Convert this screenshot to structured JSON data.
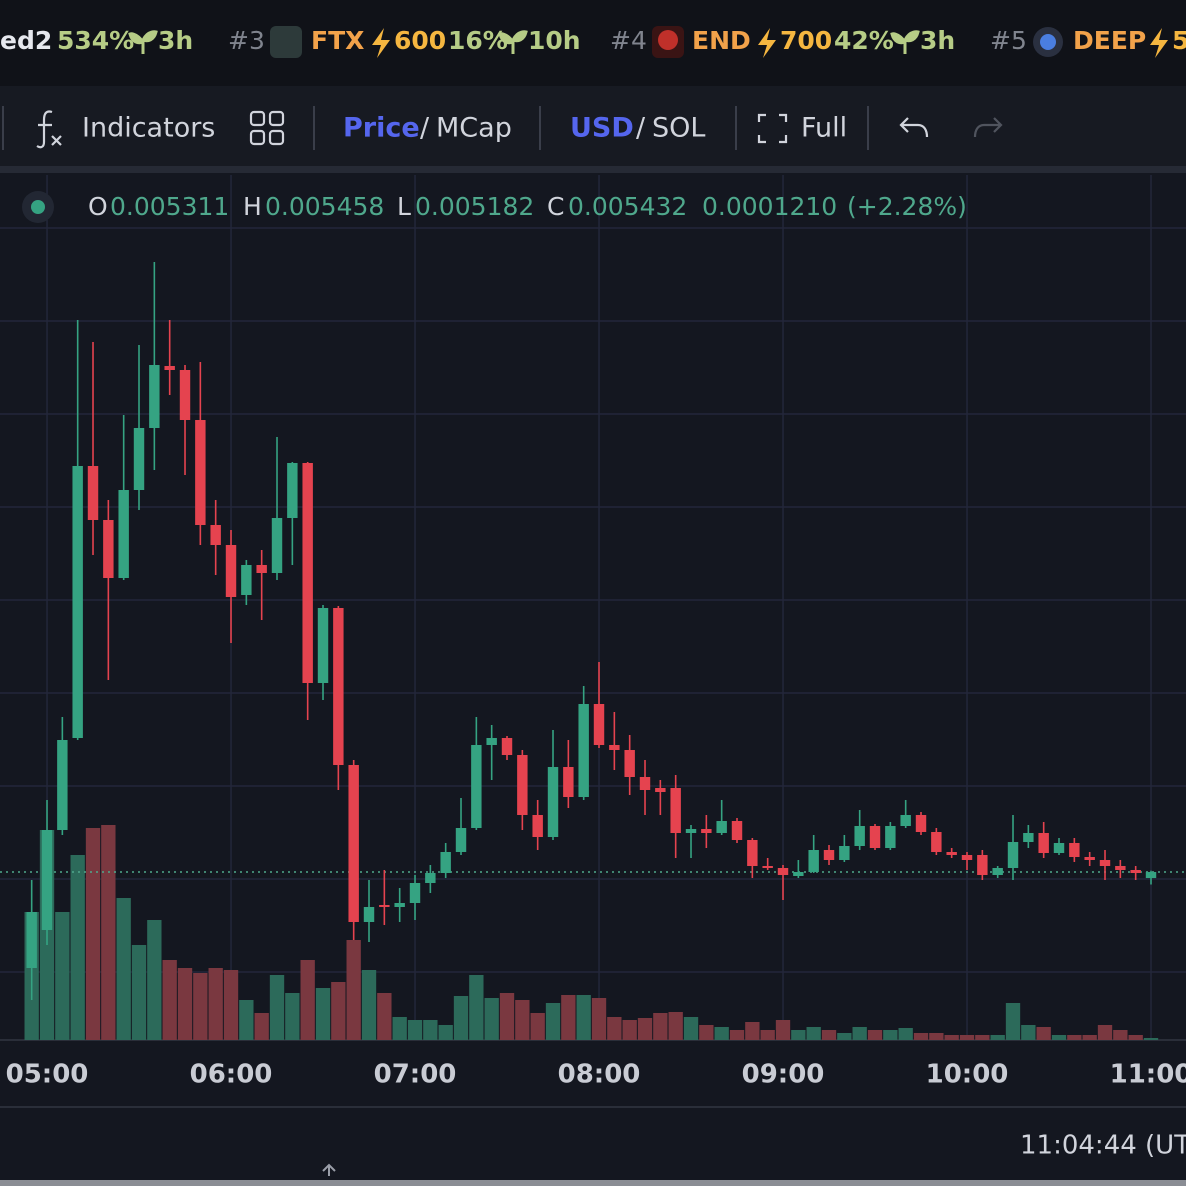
{
  "ticker": [
    {
      "name": "ed2",
      "pct": "534%",
      "age": "3h"
    },
    {
      "rank": "#3",
      "name": "FTX",
      "boost": "600",
      "pct": "16%",
      "age": "10h"
    },
    {
      "rank": "#4",
      "name": "END",
      "boost": "700",
      "pct": "42%",
      "age": "3h"
    },
    {
      "rank": "#5",
      "name": "DEEP",
      "boost": "5"
    }
  ],
  "toolbar": {
    "indicators": "Indicators",
    "price": "Price",
    "mcap": "MCap",
    "usd": "USD",
    "sol": "SOL",
    "separator": "/",
    "full": "Full"
  },
  "chart_data": {
    "type": "candlestick",
    "x": [
      295,
      300,
      305,
      310,
      315,
      320,
      325,
      330,
      335,
      340,
      345,
      350,
      355,
      360,
      365,
      370,
      375,
      380,
      385,
      390,
      395,
      400,
      405,
      410,
      415,
      420,
      425,
      430,
      435,
      440,
      445,
      450,
      455,
      460,
      465,
      470,
      475,
      480,
      485,
      490,
      495,
      500,
      505,
      510,
      515,
      520,
      525,
      530,
      535,
      540,
      545,
      550,
      555,
      560,
      565,
      570,
      575,
      580,
      585,
      590,
      595,
      600,
      605,
      610,
      615,
      620,
      625,
      630,
      635,
      640,
      645,
      650,
      655,
      660
    ],
    "open": [
      0.003512,
      0.004272,
      0.006272,
      0.008112,
      0.013552,
      0.012472,
      0.011312,
      0.013072,
      0.014312,
      0.015552,
      0.015472,
      0.014472,
      0.012372,
      0.011972,
      0.010972,
      0.011572,
      0.011412,
      0.012512,
      0.013612,
      0.009212,
      0.010712,
      0.007572,
      0.004432,
      0.004772,
      0.004732,
      0.004812,
      0.005212,
      0.005412,
      0.005832,
      0.006312,
      0.007972,
      0.008112,
      0.007772,
      0.006572,
      0.006132,
      0.007532,
      0.006932,
      0.008792,
      0.007972,
      0.007872,
      0.007332,
      0.007112,
      0.007112,
      0.006212,
      0.006292,
      0.006212,
      0.006452,
      0.006072,
      0.005552,
      0.005512,
      0.005352,
      0.005432,
      0.005872,
      0.005672,
      0.005952,
      0.006352,
      0.005912,
      0.006352,
      0.006572,
      0.006232,
      0.005832,
      0.005772,
      0.005772,
      0.005372,
      0.005512,
      0.006032,
      0.006212,
      0.005812,
      0.006012,
      0.005732,
      0.005672,
      0.005552,
      0.005472,
      0.005311
    ],
    "high": [
      0.005272,
      0.006872,
      0.008532,
      0.016472,
      0.016032,
      0.012872,
      0.014572,
      0.015972,
      0.017632,
      0.016472,
      0.015572,
      0.015632,
      0.012872,
      0.012272,
      0.011672,
      0.011872,
      0.014132,
      0.013632,
      0.013632,
      0.010772,
      0.010752,
      0.007672,
      0.005272,
      0.005472,
      0.005112,
      0.005372,
      0.005572,
      0.006012,
      0.006912,
      0.008532,
      0.008372,
      0.008152,
      0.007872,
      0.006872,
      0.008272,
      0.008072,
      0.009152,
      0.009632,
      0.008632,
      0.008172,
      0.007672,
      0.007272,
      0.007372,
      0.006372,
      0.006572,
      0.006872,
      0.006512,
      0.006112,
      0.005712,
      0.005572,
      0.005672,
      0.006172,
      0.005972,
      0.006172,
      0.006672,
      0.006392,
      0.006432,
      0.006872,
      0.006632,
      0.006312,
      0.005912,
      0.005832,
      0.005872,
      0.005552,
      0.006572,
      0.006372,
      0.006432,
      0.006112,
      0.006112,
      0.005832,
      0.005872,
      0.005672,
      0.005552,
      0.005458
    ],
    "low": [
      0.002872,
      0.003972,
      0.006172,
      0.008072,
      0.011772,
      0.009272,
      0.011272,
      0.012672,
      0.013472,
      0.014972,
      0.013372,
      0.011972,
      0.011372,
      0.010012,
      0.010772,
      0.010472,
      0.011272,
      0.011572,
      0.008472,
      0.008872,
      0.007072,
      0.004072,
      0.004032,
      0.004372,
      0.004432,
      0.004472,
      0.005012,
      0.005312,
      0.005772,
      0.006272,
      0.007272,
      0.007672,
      0.006272,
      0.005872,
      0.006072,
      0.006712,
      0.006872,
      0.007912,
      0.007472,
      0.006972,
      0.006572,
      0.006572,
      0.005712,
      0.005712,
      0.005912,
      0.006172,
      0.006012,
      0.005312,
      0.005472,
      0.004872,
      0.005312,
      0.005412,
      0.005572,
      0.005632,
      0.005872,
      0.005872,
      0.005872,
      0.006312,
      0.006172,
      0.005772,
      0.005712,
      0.005472,
      0.005272,
      0.005312,
      0.005272,
      0.005912,
      0.005712,
      0.005772,
      0.005632,
      0.005552,
      0.005272,
      0.005312,
      0.005272,
      0.005182
    ],
    "close": [
      0.004632,
      0.006272,
      0.008072,
      0.013552,
      0.012472,
      0.011312,
      0.013072,
      0.014312,
      0.015572,
      0.015472,
      0.014472,
      0.012372,
      0.011972,
      0.010932,
      0.011572,
      0.011412,
      0.012512,
      0.013612,
      0.009212,
      0.010712,
      0.007572,
      0.004432,
      0.004732,
      0.004732,
      0.004812,
      0.005212,
      0.005412,
      0.005832,
      0.006312,
      0.007972,
      0.008112,
      0.007772,
      0.006572,
      0.006132,
      0.007532,
      0.006932,
      0.008792,
      0.007972,
      0.007872,
      0.007332,
      0.007072,
      0.007032,
      0.006212,
      0.006292,
      0.006212,
      0.006452,
      0.006072,
      0.005552,
      0.005512,
      0.005372,
      0.005432,
      0.005872,
      0.005672,
      0.005952,
      0.006352,
      0.005912,
      0.006352,
      0.006572,
      0.006232,
      0.005832,
      0.005772,
      0.005672,
      0.005372,
      0.005512,
      0.006032,
      0.006212,
      0.005812,
      0.006012,
      0.005732,
      0.005672,
      0.005552,
      0.005472,
      0.005412,
      0.005432
    ],
    "volume": [
      64,
      105,
      64,
      92.5,
      106,
      107.5,
      71,
      47.5,
      60,
      40,
      36,
      33.5,
      36,
      35,
      20,
      13.5,
      32.5,
      23.5,
      40,
      26,
      29,
      50,
      35,
      23.5,
      11.5,
      10,
      10,
      7.5,
      22,
      32.5,
      21,
      23.5,
      20,
      13.5,
      18.5,
      22.5,
      22.5,
      21,
      11.5,
      10,
      11,
      13.5,
      14,
      11.5,
      7.5,
      6.5,
      5,
      9,
      5,
      10,
      5,
      6.5,
      5,
      3.5,
      6.5,
      5,
      5,
      6,
      3.5,
      3.5,
      2.5,
      2.5,
      2.5,
      2.5,
      18.5,
      7.5,
      6.5,
      2.5,
      2.5,
      2.5,
      7.5,
      5,
      2.5,
      1
    ],
    "xlim": [
      284.67,
      671.41
    ],
    "xticks": [
      {
        "value": 300,
        "label": "05:00"
      },
      {
        "value": 360,
        "label": "06:00"
      },
      {
        "value": 420,
        "label": "07:00"
      },
      {
        "value": 480,
        "label": "08:00"
      },
      {
        "value": 540,
        "label": "09:00"
      },
      {
        "value": 600,
        "label": "10:00"
      },
      {
        "value": 660,
        "label": "11:00"
      }
    ],
    "ylim": [
      0.002072,
      0.018312
    ],
    "volume_ylim": [
      0,
      120
    ],
    "grid": true,
    "up_color": "#35a382",
    "down_color": "#e5434f",
    "volume_up_color": "#2c6a5a",
    "volume_down_color": "#7a3840",
    "legend_labels": [
      "O",
      "H",
      "L",
      "C"
    ],
    "change": {
      "value": 0.000121,
      "label": "0.0001210"
    },
    "change_pct": "(+2.28%)"
  },
  "footer": {
    "time": "11:04:44 (UT"
  }
}
